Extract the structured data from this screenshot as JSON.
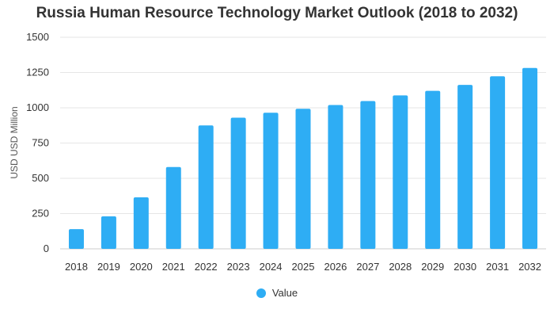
{
  "chart_data": {
    "type": "bar",
    "title": "Russia Human Resource Technology Market Outlook (2018 to 2032)",
    "xlabel": "",
    "ylabel": "USD USD Million",
    "ylim": [
      0,
      1500
    ],
    "yticks": [
      0,
      250,
      500,
      750,
      1000,
      1250,
      1500
    ],
    "categories": [
      "2018",
      "2019",
      "2020",
      "2021",
      "2022",
      "2023",
      "2024",
      "2025",
      "2026",
      "2027",
      "2028",
      "2029",
      "2030",
      "2031",
      "2032"
    ],
    "series": [
      {
        "name": "Value",
        "color": "#2eadf4",
        "values": [
          140,
          230,
          365,
          580,
          875,
          930,
          965,
          993,
          1020,
          1048,
          1088,
          1120,
          1162,
          1223,
          1282
        ]
      }
    ],
    "grid": true,
    "legend_position": "bottom-center"
  }
}
